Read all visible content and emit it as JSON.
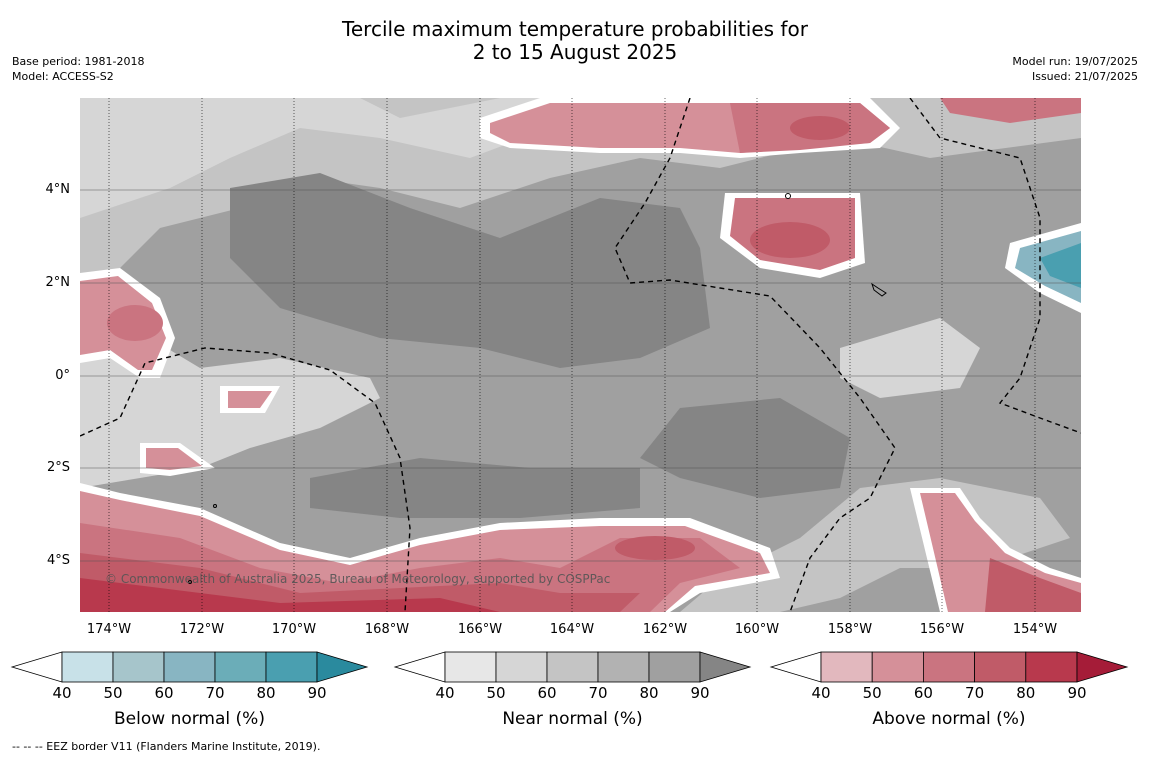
{
  "title": {
    "line1": "Tercile maximum temperature probabilities for",
    "line2": "2 to 15 August 2025"
  },
  "meta_left": {
    "base_period": "Base period: 1981-2018",
    "model": "Model: ACCESS-S2"
  },
  "meta_right": {
    "model_run": "Model run: 19/07/2025",
    "issued": "Issued: 21/07/2025"
  },
  "map": {
    "lat_labels": [
      "4°N",
      "2°N",
      "0°",
      "2°S",
      "4°S"
    ],
    "lon_labels": [
      "174°W",
      "172°W",
      "170°W",
      "168°W",
      "166°W",
      "164°W",
      "162°W",
      "160°W",
      "158°W",
      "156°W",
      "154°W"
    ],
    "copyright": "© Commonwealth of Australia 2025, Bureau of Meteorology, supported by COSPPac"
  },
  "colorbars": [
    {
      "title": "Below normal (%)",
      "ticks": [
        "40",
        "50",
        "60",
        "70",
        "80",
        "90"
      ],
      "colors": [
        "#ffffff",
        "#c8e1e8",
        "#a6c5cb",
        "#88b5c2",
        "#6badb8",
        "#4a9fb0",
        "#2a8a9e"
      ]
    },
    {
      "title": "Near normal (%)",
      "ticks": [
        "40",
        "50",
        "60",
        "70",
        "80",
        "90"
      ],
      "colors": [
        "#ffffff",
        "#e7e7e7",
        "#d6d6d6",
        "#c4c4c4",
        "#b2b2b2",
        "#a0a0a0",
        "#858585"
      ]
    },
    {
      "title": "Above normal (%)",
      "ticks": [
        "40",
        "50",
        "60",
        "70",
        "80",
        "90"
      ],
      "colors": [
        "#ffffff",
        "#e2b8be",
        "#d59099",
        "#ca7480",
        "#c05b68",
        "#b8394d",
        "#a51c38"
      ]
    }
  ],
  "footnote": "--  --  -- EEZ border V11 (Flanders Marine Institute, 2019)."
}
